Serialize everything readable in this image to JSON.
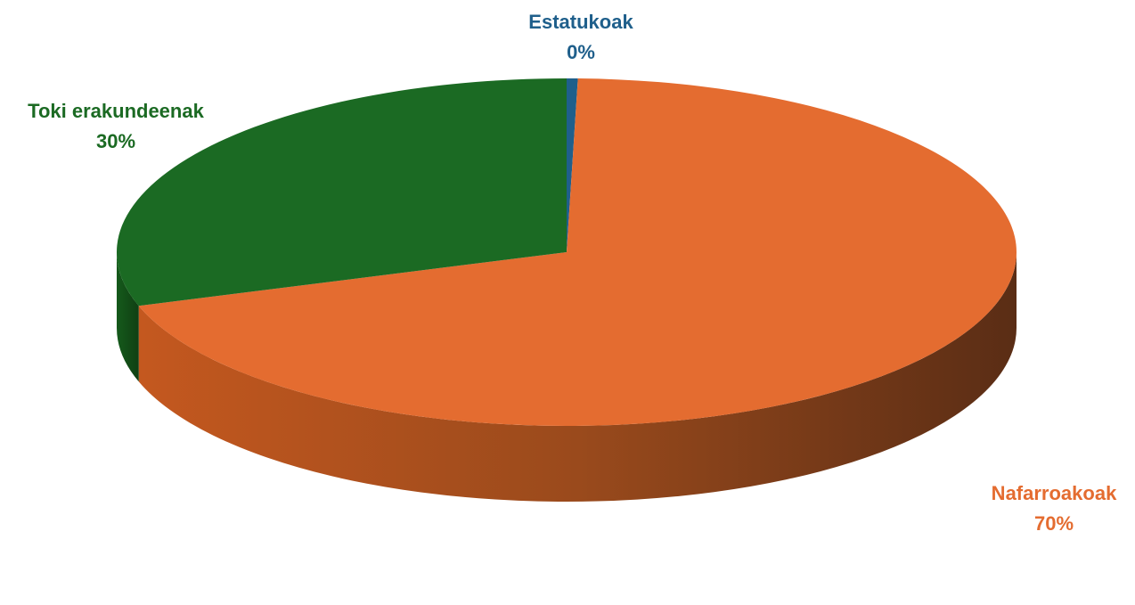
{
  "chart_data": {
    "type": "pie",
    "variant": "3d",
    "title": "",
    "slices": [
      {
        "name": "Estatukoak",
        "value": 0.4,
        "label": "0%",
        "color": "#1f5f8b"
      },
      {
        "name": "Nafarroakoak",
        "value": 69.6,
        "label": "70%",
        "color": "#e46c30"
      },
      {
        "name": "Toki erakundeenak",
        "value": 30.0,
        "label": "30%",
        "color": "#1b6a23"
      }
    ],
    "start_angle": "top, clockwise"
  }
}
